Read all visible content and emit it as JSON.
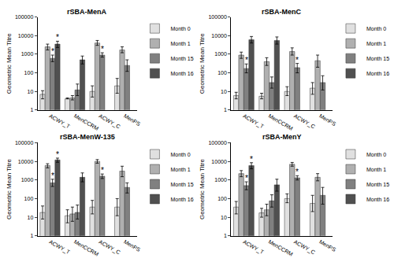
{
  "chart_data": [
    {
      "type": "bar",
      "title": "rSBA-MenA",
      "y_label": "Geometric Mean Titre",
      "categories": [
        "ACWY_T",
        "MenCCRM",
        "ACWY_C",
        "MenPS"
      ],
      "series": [
        {
          "name": "Month 0",
          "color": "#e0e0e0",
          "values": [
            7,
            4,
            10,
            20
          ],
          "error": [
            [
              4,
              11
            ],
            [
              4,
              4.5
            ],
            [
              5,
              20
            ],
            [
              8,
              50
            ]
          ]
        },
        {
          "name": "Month 1",
          "color": "#b0b0b0",
          "values": [
            2500,
            4.5,
            4000,
            1700
          ],
          "error": [
            [
              1700,
              3500
            ],
            [
              3.5,
              6
            ],
            [
              3000,
              5500
            ],
            [
              1200,
              2500
            ]
          ]
        },
        {
          "name": "Month 15",
          "color": "#808080",
          "values": [
            600,
            12,
            900,
            250
          ],
          "error": [
            [
              400,
              900
            ],
            [
              6,
              25
            ],
            [
              700,
              1200
            ],
            [
              120,
              500
            ]
          ]
        },
        {
          "name": "Month 16",
          "color": "#505050",
          "values": [
            3500,
            500,
            null,
            null
          ],
          "error": [
            [
              2300,
              5000
            ],
            [
              300,
              800
            ],
            null,
            null
          ]
        }
      ],
      "annotations": [
        {
          "text": "*",
          "category": "ACWY_T",
          "series": "Month 15"
        },
        {
          "text": "*",
          "category": "ACWY_T",
          "series": "Month 16"
        },
        {
          "text": "*",
          "category": "ACWY_C",
          "series": "Month 15"
        }
      ],
      "log": "y",
      "ylim": [
        1,
        100000
      ],
      "yticks": [
        1,
        10,
        100,
        1000,
        10000,
        100000
      ],
      "grid": false,
      "legend": "right"
    },
    {
      "type": "bar",
      "title": "rSBA-MenC",
      "y_label": "Geometric Mean Titre",
      "categories": [
        "ACWY_T",
        "MenCCRM",
        "ACWY_C",
        "MenPS"
      ],
      "series": [
        {
          "name": "Month 0",
          "color": "#e0e0e0",
          "values": [
            6,
            5.5,
            10,
            15
          ],
          "error": [
            [
              4,
              9
            ],
            [
              4,
              8
            ],
            [
              6,
              18
            ],
            [
              7,
              30
            ]
          ]
        },
        {
          "name": "Month 1",
          "color": "#b0b0b0",
          "values": [
            900,
            400,
            1400,
            450
          ],
          "error": [
            [
              600,
              1300
            ],
            [
              250,
              650
            ],
            [
              900,
              2200
            ],
            [
              200,
              900
            ]
          ]
        },
        {
          "name": "Month 15",
          "color": "#808080",
          "values": [
            170,
            30,
            190,
            30
          ],
          "error": [
            [
              100,
              300
            ],
            [
              15,
              60
            ],
            [
              100,
              320
            ],
            [
              12,
              70
            ]
          ]
        },
        {
          "name": "Month 16",
          "color": "#505050",
          "values": [
            6000,
            5500,
            null,
            null
          ],
          "error": [
            [
              4000,
              9000
            ],
            [
              3500,
              8500
            ],
            null,
            null
          ]
        }
      ],
      "annotations": [
        {
          "text": "*",
          "category": "ACWY_T",
          "series": "Month 15"
        },
        {
          "text": "*",
          "category": "ACWY_C",
          "series": "Month 15"
        }
      ],
      "log": "y",
      "ylim": [
        1,
        100000
      ],
      "yticks": [
        1,
        10,
        100,
        1000,
        10000,
        100000
      ],
      "grid": false,
      "legend": "right"
    },
    {
      "type": "bar",
      "title": "rSBA-MenW-135",
      "y_label": "Geometric Mean Titre",
      "categories": [
        "ACWY_T",
        "MenCCRM",
        "ACWY_C",
        "MenPS"
      ],
      "series": [
        {
          "name": "Month 0",
          "color": "#e0e0e0",
          "values": [
            18,
            12,
            35,
            35
          ],
          "error": [
            [
              8,
              40
            ],
            [
              5,
              25
            ],
            [
              15,
              80
            ],
            [
              12,
              100
            ]
          ]
        },
        {
          "name": "Month 1",
          "color": "#b0b0b0",
          "values": [
            6000,
            15,
            10000,
            3000
          ],
          "error": [
            [
              4500,
              7500
            ],
            [
              6,
              35
            ],
            [
              8000,
              12500
            ],
            [
              1500,
              5500
            ]
          ]
        },
        {
          "name": "Month 15",
          "color": "#808080",
          "values": [
            700,
            18,
            1600,
            400
          ],
          "error": [
            [
              450,
              1100
            ],
            [
              8,
              45
            ],
            [
              1200,
              2100
            ],
            [
              200,
              700
            ]
          ]
        },
        {
          "name": "Month 16",
          "color": "#505050",
          "values": [
            12000,
            1400,
            null,
            null
          ],
          "error": [
            [
              9000,
              15000
            ],
            [
              800,
              2400
            ],
            null,
            null
          ]
        }
      ],
      "annotations": [
        {
          "text": "*",
          "category": "ACWY_T",
          "series": "Month 15"
        },
        {
          "text": "*",
          "category": "ACWY_T",
          "series": "Month 16"
        },
        {
          "text": "*",
          "category": "ACWY_C",
          "series": "Month 15"
        }
      ],
      "log": "y",
      "ylim": [
        1,
        100000
      ],
      "yticks": [
        1,
        10,
        100,
        1000,
        10000,
        100000
      ],
      "grid": false,
      "legend": "right"
    },
    {
      "type": "bar",
      "title": "rSBA-MenY",
      "y_label": "Geometric Mean Titre",
      "categories": [
        "ACWY_T",
        "MenCCRM",
        "ACWY_C",
        "MenPS"
      ],
      "series": [
        {
          "name": "Month 0",
          "color": "#e0e0e0",
          "values": [
            35,
            17,
            100,
            55
          ],
          "error": [
            [
              15,
              70
            ],
            [
              10,
              30
            ],
            [
              60,
              180
            ],
            [
              20,
              150
            ]
          ]
        },
        {
          "name": "Month 1",
          "color": "#b0b0b0",
          "values": [
            2200,
            25,
            7000,
            1400
          ],
          "error": [
            [
              1500,
              3200
            ],
            [
              12,
              50
            ],
            [
              5500,
              8800
            ],
            [
              900,
              2200
            ]
          ]
        },
        {
          "name": "Month 15",
          "color": "#808080",
          "values": [
            500,
            75,
            1300,
            150
          ],
          "error": [
            [
              300,
              800
            ],
            [
              35,
              160
            ],
            [
              1000,
              1700
            ],
            [
              50,
              400
            ]
          ]
        },
        {
          "name": "Month 16",
          "color": "#505050",
          "values": [
            6000,
            550,
            null,
            null
          ],
          "error": [
            [
              4000,
              8500
            ],
            [
              250,
              1100
            ],
            null,
            null
          ]
        }
      ],
      "annotations": [
        {
          "text": "*",
          "category": "ACWY_T",
          "series": "Month 15"
        },
        {
          "text": "*",
          "category": "ACWY_T",
          "series": "Month 16"
        },
        {
          "text": "*",
          "category": "ACWY_C",
          "series": "Month 15"
        }
      ],
      "log": "y",
      "ylim": [
        1,
        100000
      ],
      "yticks": [
        1,
        10,
        100,
        1000,
        10000,
        100000
      ],
      "grid": false,
      "legend": "right"
    }
  ]
}
